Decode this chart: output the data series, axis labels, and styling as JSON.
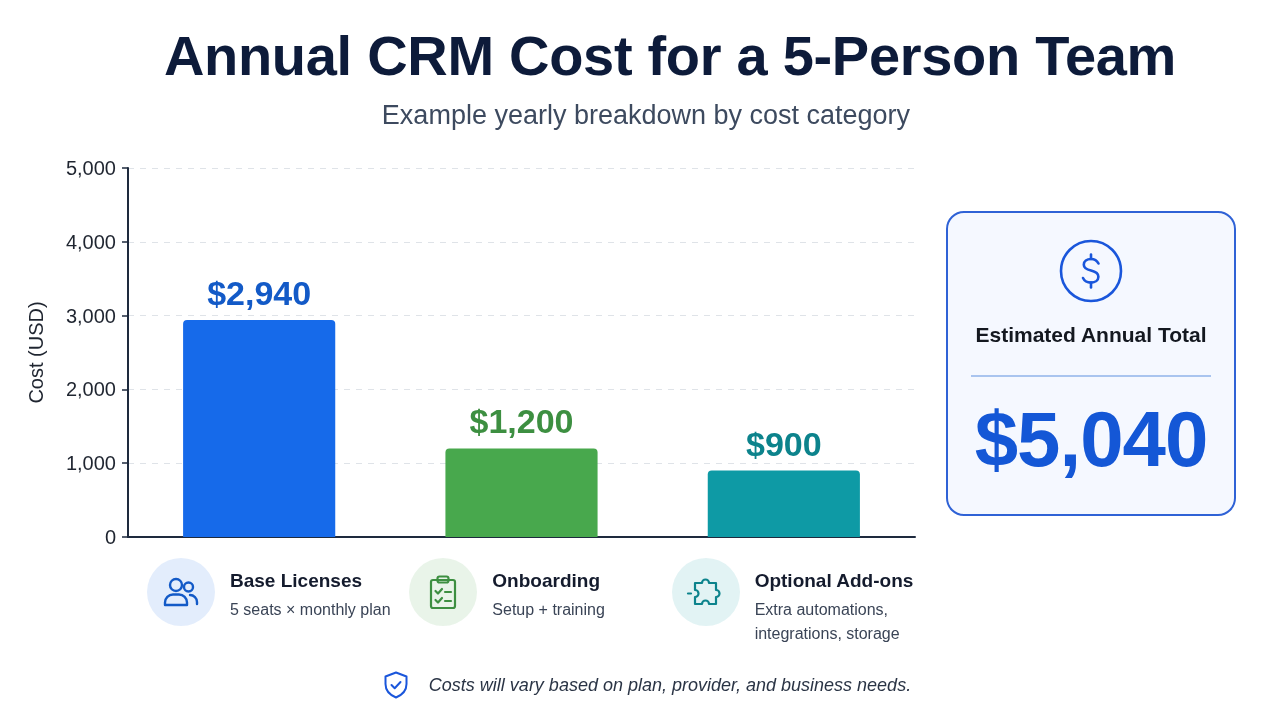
{
  "chart_data": [
    {
      "type": "bar",
      "title": "Annual CRM Cost for a 5-Person Team",
      "subtitle": "Example yearly breakdown by cost category",
      "ylabel": "Cost (USD)",
      "categories": [
        "Base Licenses",
        "Onboarding",
        "Optional Add-ons"
      ],
      "values": [
        2940,
        1200,
        900
      ],
      "colors": [
        "#166aea",
        "#48a84d",
        "#0e9aa5"
      ],
      "value_labels": [
        "$2,940",
        "$1,200",
        "$900"
      ],
      "ylim": [
        0,
        5000
      ],
      "yticks": [
        0,
        {
          "value": 1000,
          "label": "1,000"
        },
        {
          "value": 2000,
          "label": "2,000"
        },
        {
          "value": 3000,
          "label": "3,000"
        },
        {
          "value": 4000,
          "label": "4,000"
        },
        {
          "value": 5000,
          "label": "5,000"
        }
      ],
      "grid": "y",
      "annotations": [
        "5 seats × monthly plan",
        "Setup + training",
        "Extra automations, integrations, storage",
        "Costs will vary based on plan, provider, and business needs."
      ]
    },
    {
      "type": "other",
      "title": "Estimated Annual Total",
      "annotations": [
        "$5,040"
      ]
    }
  ]
}
